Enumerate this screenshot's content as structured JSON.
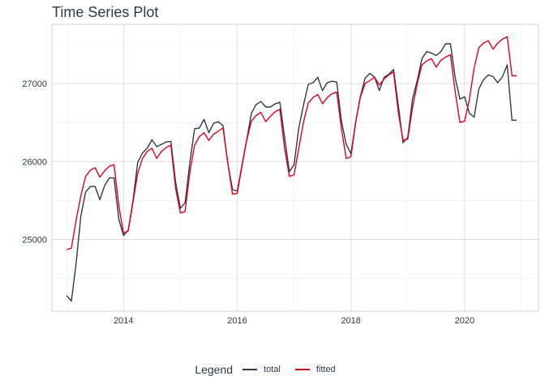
{
  "chart_data": {
    "type": "line",
    "title": "Time Series Plot",
    "xlabel": "",
    "ylabel": "",
    "x_ticks": [
      2014,
      2016,
      2018,
      2020
    ],
    "y_ticks": [
      25000,
      26000,
      27000
    ],
    "xlim": [
      2012.74,
      2021.3
    ],
    "ylim": [
      24080,
      27760
    ],
    "grid": true,
    "legend": {
      "title": "Legend",
      "position": "bottom"
    },
    "x": [
      2013.0,
      2013.083,
      2013.167,
      2013.25,
      2013.333,
      2013.417,
      2013.5,
      2013.583,
      2013.667,
      2013.75,
      2013.833,
      2013.917,
      2014.0,
      2014.083,
      2014.167,
      2014.25,
      2014.333,
      2014.417,
      2014.5,
      2014.583,
      2014.667,
      2014.75,
      2014.833,
      2014.917,
      2015.0,
      2015.083,
      2015.167,
      2015.25,
      2015.333,
      2015.417,
      2015.5,
      2015.583,
      2015.667,
      2015.75,
      2015.833,
      2015.917,
      2016.0,
      2016.083,
      2016.167,
      2016.25,
      2016.333,
      2016.417,
      2016.5,
      2016.583,
      2016.667,
      2016.75,
      2016.833,
      2016.917,
      2017.0,
      2017.083,
      2017.167,
      2017.25,
      2017.333,
      2017.417,
      2017.5,
      2017.583,
      2017.667,
      2017.75,
      2017.833,
      2017.917,
      2018.0,
      2018.083,
      2018.167,
      2018.25,
      2018.333,
      2018.417,
      2018.5,
      2018.583,
      2018.667,
      2018.75,
      2018.833,
      2018.917,
      2019.0,
      2019.083,
      2019.167,
      2019.25,
      2019.333,
      2019.417,
      2019.5,
      2019.583,
      2019.667,
      2019.75,
      2019.833,
      2019.917,
      2020.0,
      2020.083,
      2020.167,
      2020.25,
      2020.333,
      2020.417,
      2020.5,
      2020.583,
      2020.667,
      2020.75,
      2020.833,
      2020.917
    ],
    "series": [
      {
        "name": "total",
        "color": "#2b3a4a",
        "values": [
          24280,
          24210,
          24700,
          25300,
          25610,
          25680,
          25680,
          25510,
          25690,
          25790,
          25790,
          25260,
          25050,
          25120,
          25500,
          25990,
          26110,
          26170,
          26280,
          26190,
          26220,
          26250,
          26260,
          25730,
          25400,
          25470,
          25990,
          26420,
          26430,
          26540,
          26370,
          26490,
          26510,
          26460,
          25980,
          25640,
          25620,
          25950,
          26280,
          26620,
          26730,
          26770,
          26700,
          26700,
          26740,
          26760,
          26310,
          25870,
          25960,
          26430,
          26730,
          26990,
          27010,
          27080,
          26910,
          27010,
          27030,
          27020,
          26520,
          26220,
          26100,
          26500,
          26840,
          27070,
          27130,
          27080,
          26910,
          27080,
          27120,
          27180,
          26720,
          26240,
          26310,
          26800,
          27040,
          27320,
          27410,
          27390,
          27360,
          27410,
          27510,
          27510,
          27080,
          26800,
          26830,
          26620,
          26570,
          26930,
          27050,
          27110,
          27090,
          27010,
          27090,
          27240,
          26530,
          26530
        ]
      },
      {
        "name": "fitted",
        "color": "#e1001e",
        "values": [
          24870,
          24890,
          25250,
          25560,
          25810,
          25890,
          25920,
          25800,
          25880,
          25940,
          25960,
          25430,
          25080,
          25110,
          25480,
          25850,
          26040,
          26130,
          26170,
          26040,
          26130,
          26180,
          26210,
          25650,
          25340,
          25360,
          25860,
          26210,
          26320,
          26370,
          26270,
          26350,
          26390,
          26430,
          25990,
          25580,
          25590,
          25940,
          26270,
          26520,
          26590,
          26630,
          26510,
          26580,
          26640,
          26670,
          26170,
          25810,
          25830,
          26170,
          26510,
          26750,
          26820,
          26860,
          26740,
          26820,
          26870,
          26890,
          26420,
          26040,
          26060,
          26500,
          26830,
          27000,
          27040,
          27080,
          26980,
          27060,
          27110,
          27150,
          26630,
          26270,
          26290,
          26690,
          27000,
          27240,
          27290,
          27320,
          27210,
          27300,
          27340,
          27370,
          26900,
          26500,
          26520,
          26790,
          27200,
          27460,
          27520,
          27550,
          27440,
          27520,
          27570,
          27600,
          27100,
          27100
        ]
      }
    ]
  }
}
